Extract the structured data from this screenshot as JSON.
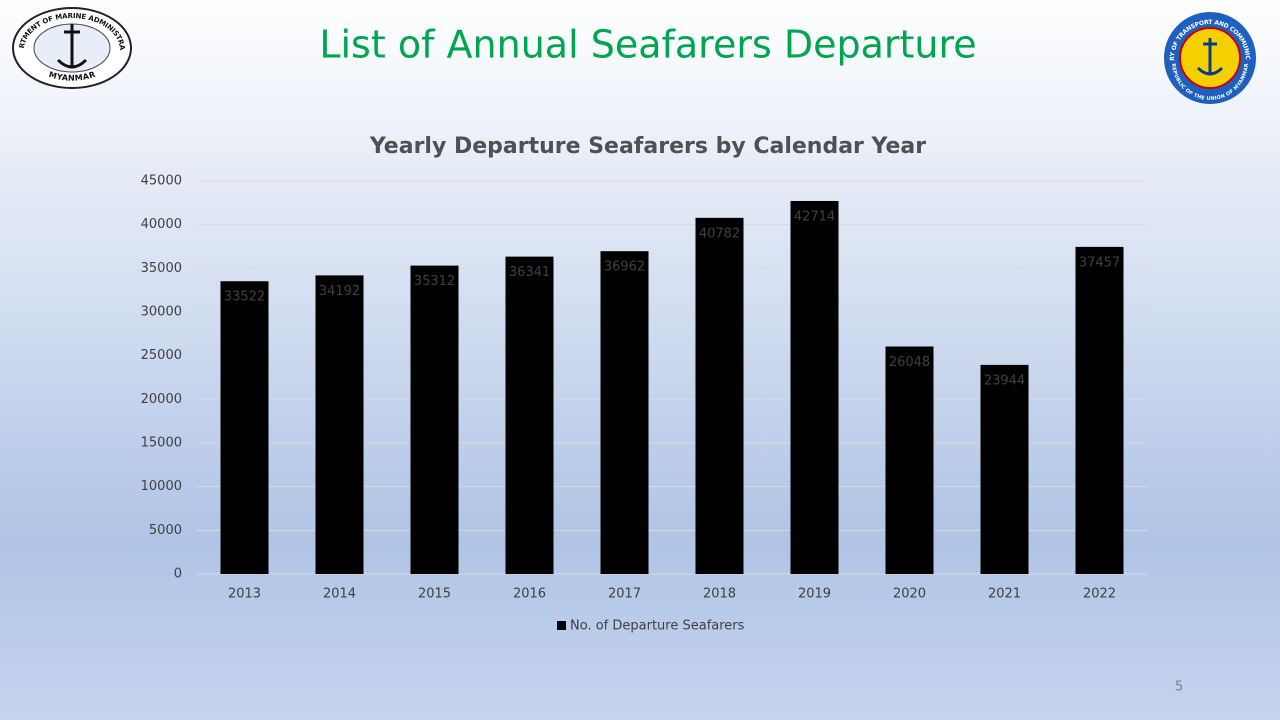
{
  "slide": {
    "title": "List of Annual Seafarers Departure",
    "page_number": "5",
    "left_logo": {
      "top_text": "DEPARTMENT OF MARINE ADMINISTRATION",
      "bottom_text": "MYANMAR"
    },
    "right_logo": {
      "top_text": "MINISTRY OF TRANSPORT AND COMMUNICATIONS",
      "bottom_text": "REPUBLIC OF THE UNION OF MYANMAR"
    }
  },
  "chart_data": {
    "type": "bar",
    "title": "Yearly Departure Seafarers by Calendar Year",
    "categories": [
      "2013",
      "2014",
      "2015",
      "2016",
      "2017",
      "2018",
      "2019",
      "2020",
      "2021",
      "2022"
    ],
    "series": [
      {
        "name": "No. of Departure Seafarers",
        "color": "#000000",
        "values": [
          33522,
          34192,
          35312,
          36341,
          36962,
          40782,
          42714,
          26048,
          23944,
          37457
        ]
      }
    ],
    "ylim": [
      0,
      45000
    ],
    "yticks": [
      0,
      5000,
      10000,
      15000,
      20000,
      25000,
      30000,
      35000,
      40000,
      45000
    ],
    "grid": true,
    "legend": "bottom"
  }
}
